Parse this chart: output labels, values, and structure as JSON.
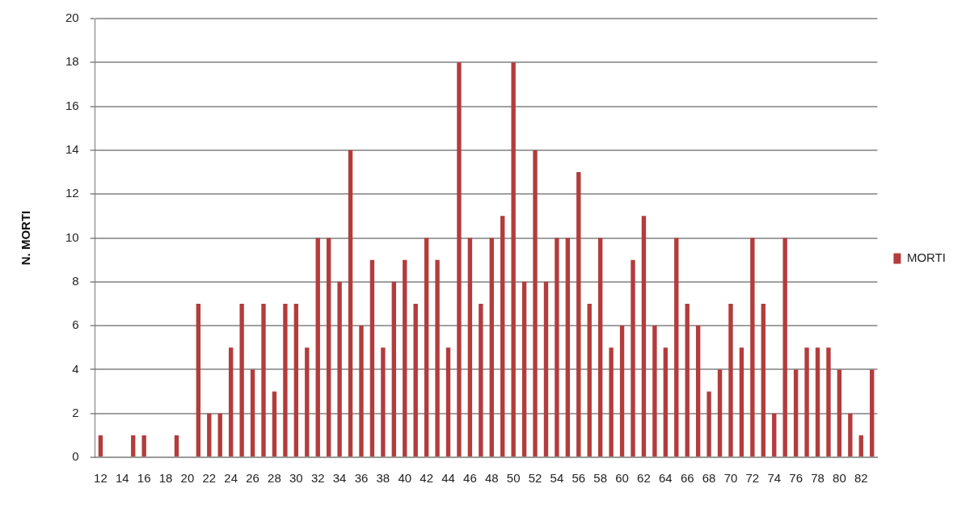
{
  "chart_data": {
    "type": "bar",
    "ylabel": "N. MORTI",
    "categories": [
      "12",
      null,
      "14",
      null,
      "16",
      null,
      "18",
      null,
      "20",
      null,
      "22",
      null,
      "24",
      null,
      "26",
      null,
      "28",
      null,
      "30",
      null,
      "32",
      null,
      "34",
      null,
      "36",
      null,
      "38",
      null,
      "40",
      null,
      "42",
      null,
      "44",
      null,
      "46",
      null,
      "48",
      null,
      "50",
      null,
      "52",
      null,
      "54",
      null,
      "56",
      null,
      "58",
      null,
      "60",
      null,
      "62",
      null,
      "64",
      null,
      "66",
      null,
      "68",
      null,
      "70",
      null,
      "72",
      null,
      "74",
      null,
      "76",
      null,
      "78",
      null,
      "80",
      null,
      "82",
      null
    ],
    "series": [
      {
        "name": "MORTI",
        "color": "#b33c3c",
        "values": [
          1,
          0,
          0,
          1,
          1,
          0,
          0,
          1,
          0,
          7,
          2,
          2,
          5,
          7,
          4,
          7,
          3,
          7,
          7,
          5,
          10,
          10,
          8,
          14,
          6,
          9,
          5,
          8,
          9,
          7,
          10,
          9,
          5,
          18,
          10,
          7,
          10,
          11,
          18,
          8,
          14,
          8,
          10,
          10,
          13,
          7,
          10,
          5,
          6,
          9,
          11,
          6,
          5,
          10,
          7,
          6,
          3,
          4,
          7,
          5,
          10,
          7,
          2,
          10,
          4,
          5,
          5,
          5,
          4,
          2,
          1,
          4
        ]
      }
    ],
    "ylim": [
      0,
      20
    ],
    "yticks": [
      0,
      2,
      4,
      6,
      8,
      10,
      12,
      14,
      16,
      18,
      20
    ],
    "grid": "y",
    "legend": "right"
  }
}
